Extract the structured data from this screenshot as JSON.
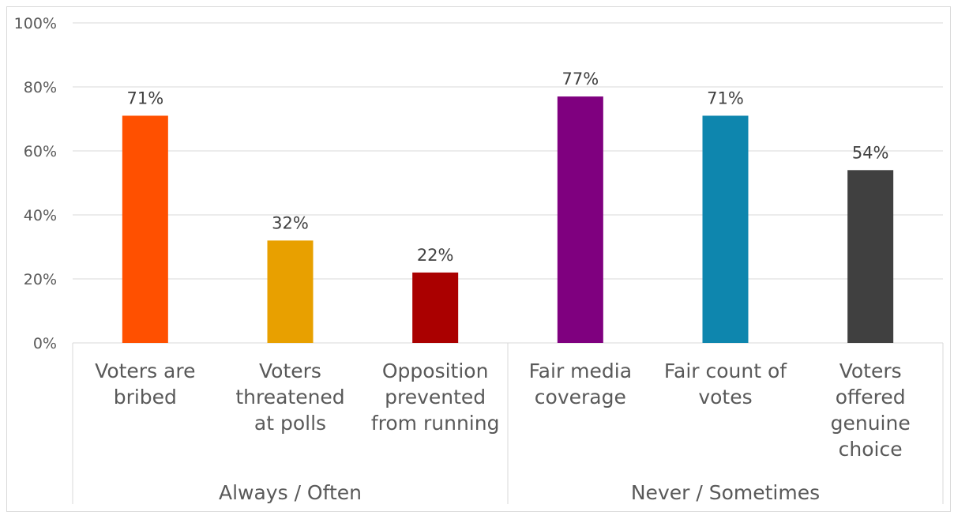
{
  "chart_data": {
    "type": "bar",
    "y_axis": {
      "ylim": [
        0,
        100
      ],
      "ticks": [
        "0%",
        "20%",
        "40%",
        "60%",
        "80%",
        "100%"
      ],
      "grid": true
    },
    "categories": [
      {
        "lines": [
          "Voters are",
          "bribed"
        ],
        "group": "always"
      },
      {
        "lines": [
          "Voters",
          "threatened",
          "at polls"
        ],
        "group": "always"
      },
      {
        "lines": [
          "Opposition",
          "prevented",
          "from running"
        ],
        "group": "always"
      },
      {
        "lines": [
          "Fair media",
          "coverage"
        ],
        "group": "never"
      },
      {
        "lines": [
          "Fair count of",
          "votes"
        ],
        "group": "never"
      },
      {
        "lines": [
          "Voters",
          "offered",
          "genuine",
          "choice"
        ],
        "group": "never"
      }
    ],
    "values": [
      71,
      32,
      22,
      77,
      71,
      54
    ],
    "value_labels": [
      "71%",
      "32%",
      "22%",
      "77%",
      "71%",
      "54%"
    ],
    "colors": [
      "#FF5000",
      "#E8A000",
      "#AA0000",
      "#7F007F",
      "#0E86AE",
      "#404040"
    ],
    "groups": [
      {
        "id": "always",
        "label": "Always / Often"
      },
      {
        "id": "never",
        "label": "Never / Sometimes"
      }
    ],
    "legend": "none"
  }
}
